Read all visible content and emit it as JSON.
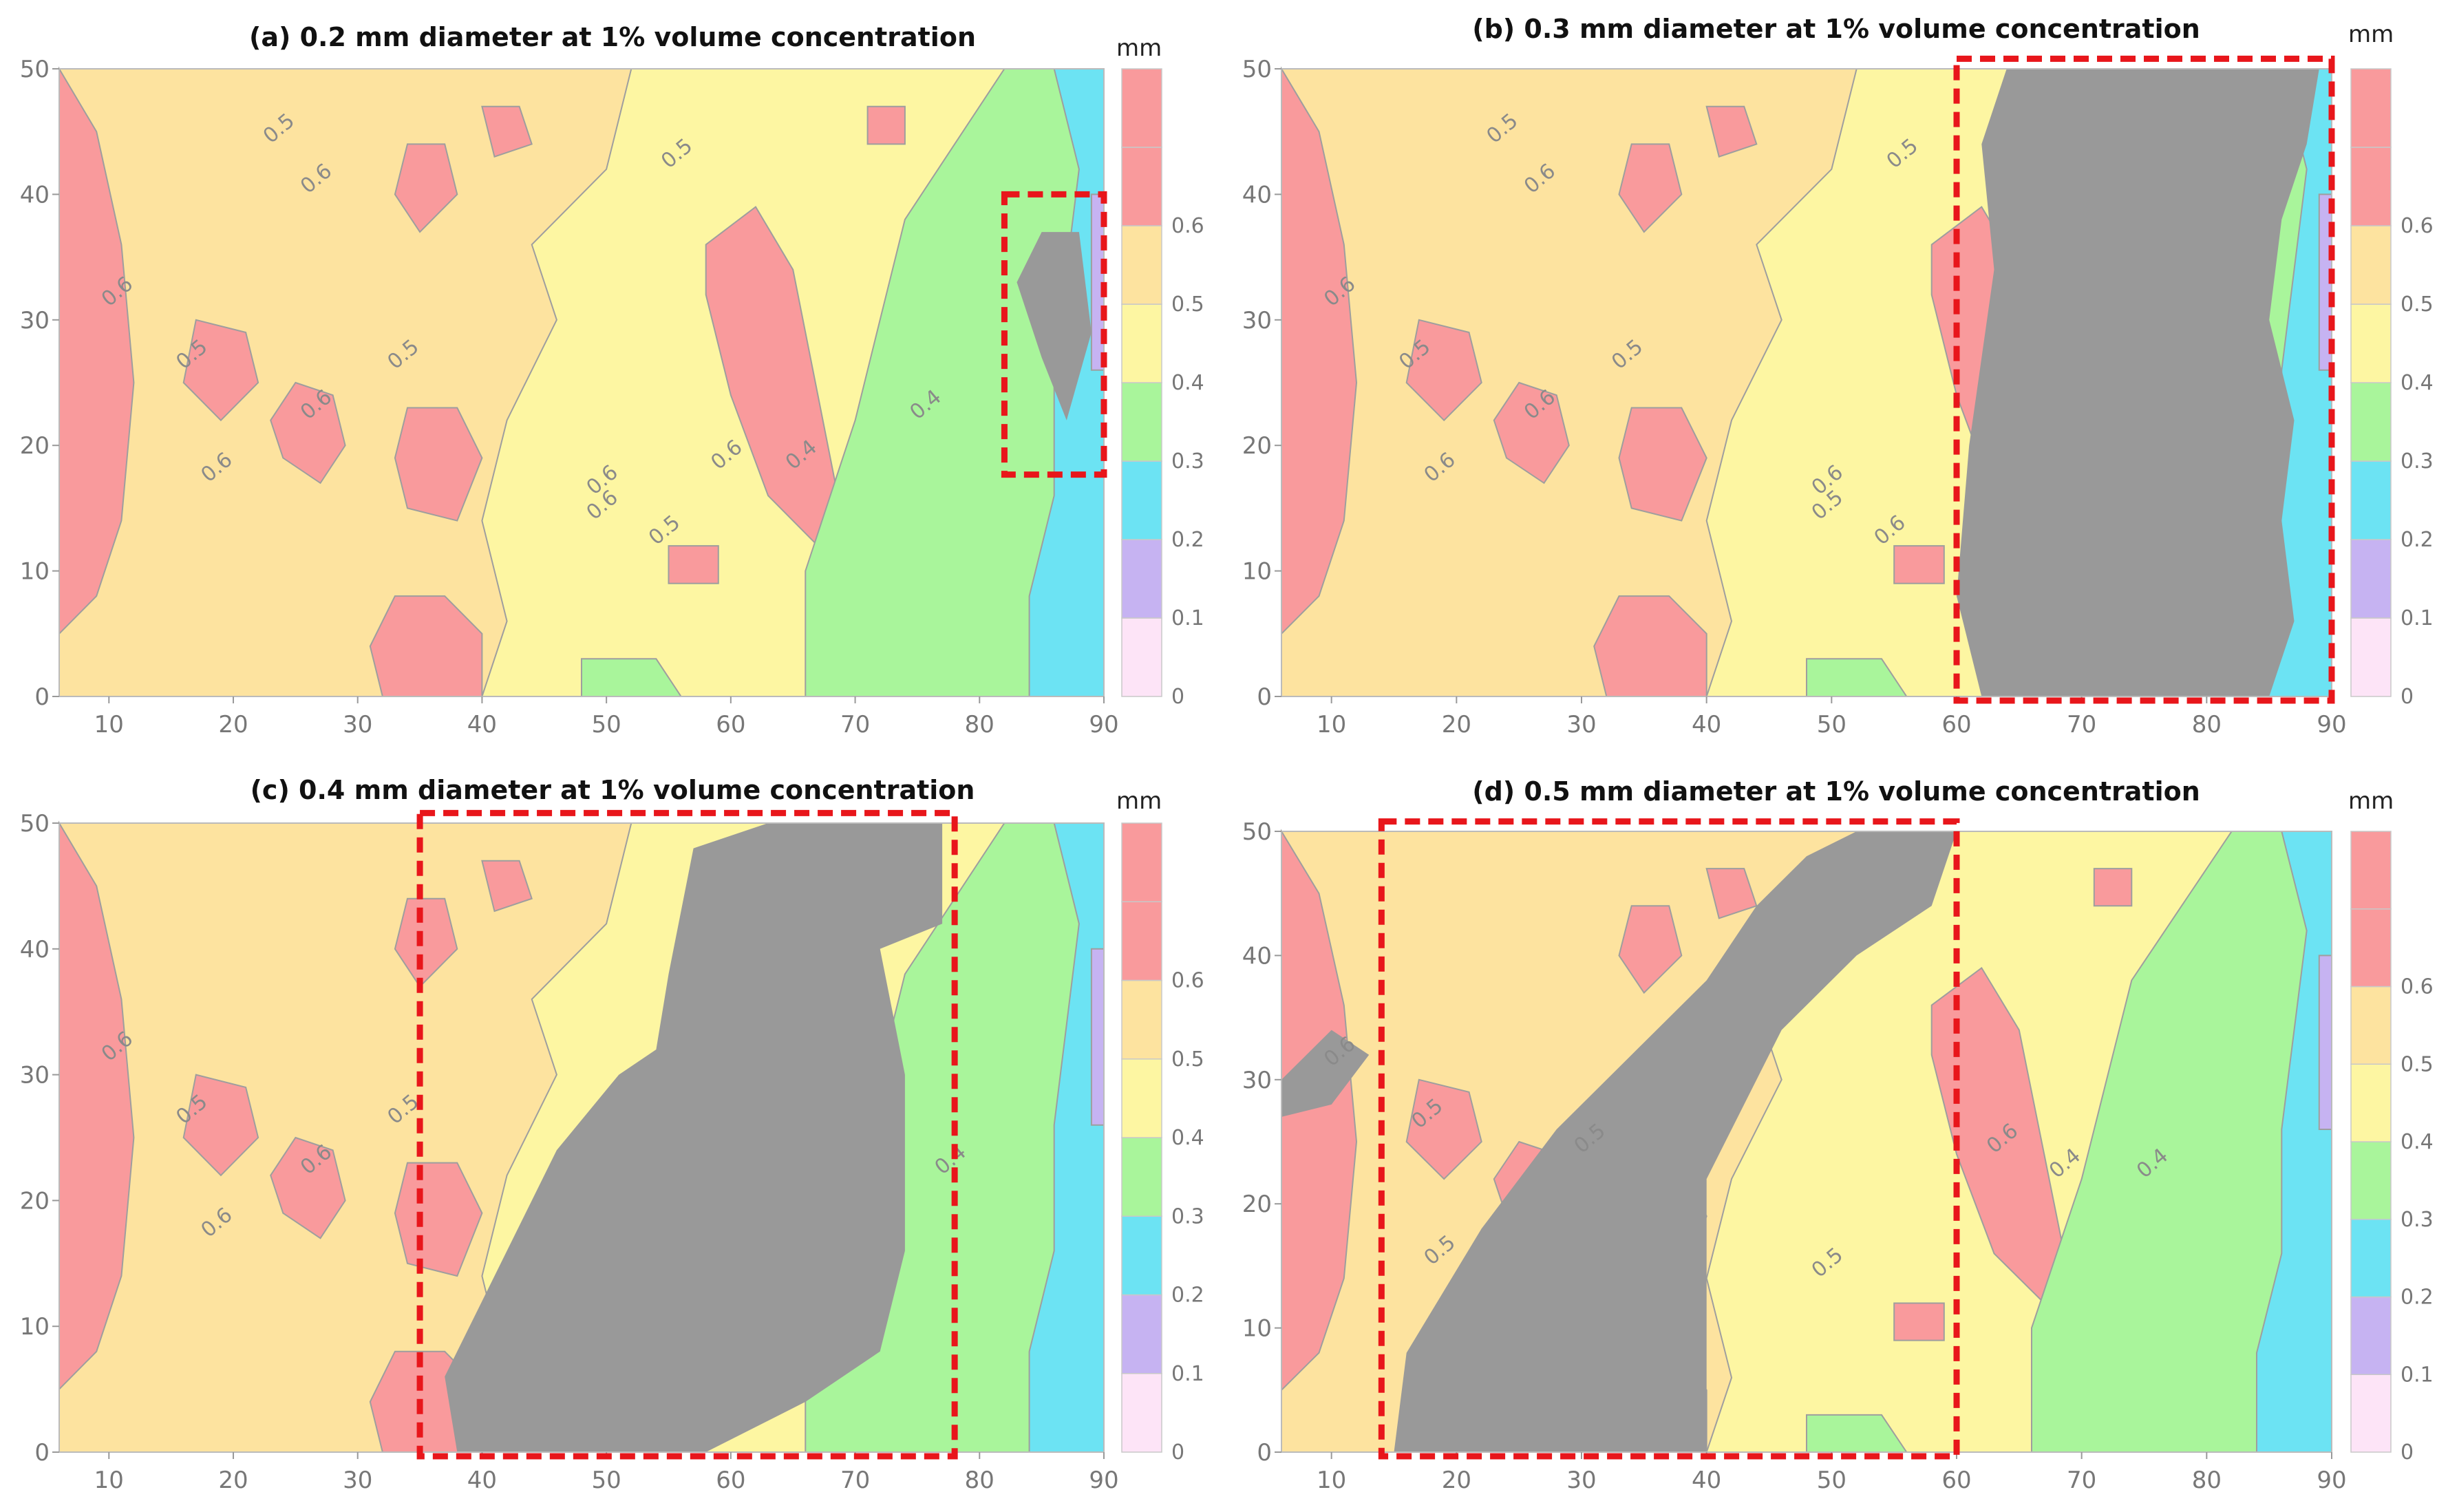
{
  "chart_data": [
    {
      "type": "heatmap",
      "title": "(a) 0.2 mm diameter at 1% volume concentration",
      "xlabel": "",
      "ylabel": "",
      "xlim": [
        6,
        90
      ],
      "ylim": [
        0,
        50
      ],
      "xticks": [
        10,
        20,
        30,
        40,
        50,
        60,
        70,
        80,
        90
      ],
      "yticks": [
        0,
        10,
        20,
        30,
        40,
        50
      ],
      "colorbar": {
        "unit": "mm",
        "levels": [
          0,
          0.1,
          0.2,
          0.3,
          0.4,
          0.5,
          0.6
        ]
      },
      "contour_labels": [
        "0.6",
        "0.5",
        "0.5",
        "0.6",
        "0.5",
        "0.6",
        "0.6",
        "0.5",
        "0.6",
        "0.6",
        "0.5",
        "0.6",
        "0.4",
        "0.4"
      ],
      "highlight_box": {
        "x": [
          82,
          90
        ],
        "y": [
          18,
          40
        ]
      },
      "gray_region": "right"
    },
    {
      "type": "heatmap",
      "title": "(b) 0.3 mm diameter at 1% volume concentration",
      "xlabel": "",
      "ylabel": "",
      "xlim": [
        6,
        90
      ],
      "ylim": [
        0,
        50
      ],
      "xticks": [
        10,
        20,
        30,
        40,
        50,
        60,
        70,
        80,
        90
      ],
      "yticks": [
        0,
        10,
        20,
        30,
        40,
        50
      ],
      "colorbar": {
        "unit": "mm",
        "levels": [
          0,
          0.1,
          0.2,
          0.3,
          0.4,
          0.5,
          0.6
        ]
      },
      "contour_labels": [
        "0.6",
        "0.5",
        "0.5",
        "0.6",
        "0.5",
        "0.6",
        "0.6",
        "0.5",
        "0.6",
        "0.5",
        "0.6"
      ],
      "highlight_box": {
        "x": [
          60,
          90
        ],
        "y": [
          0,
          51
        ]
      },
      "gray_region": "right-large"
    },
    {
      "type": "heatmap",
      "title": "(c) 0.4 mm diameter at 1% volume concentration",
      "xlabel": "",
      "ylabel": "",
      "xlim": [
        6,
        90
      ],
      "ylim": [
        0,
        50
      ],
      "xticks": [
        10,
        20,
        30,
        40,
        50,
        60,
        70,
        80,
        90
      ],
      "yticks": [
        0,
        10,
        20,
        30,
        40,
        50
      ],
      "colorbar": {
        "unit": "mm",
        "levels": [
          0,
          0.1,
          0.2,
          0.3,
          0.4,
          0.5,
          0.6
        ]
      },
      "contour_labels": [
        "0.6",
        "0.5",
        "0.6",
        "0.6",
        "0.5",
        "0.4"
      ],
      "highlight_box": {
        "x": [
          35,
          78
        ],
        "y": [
          0,
          51
        ]
      },
      "gray_region": "diagonal"
    },
    {
      "type": "heatmap",
      "title": "(d) 0.5 mm diameter at 1% volume concentration",
      "xlabel": "",
      "ylabel": "",
      "xlim": [
        6,
        90
      ],
      "ylim": [
        0,
        50
      ],
      "xticks": [
        10,
        20,
        30,
        40,
        50,
        60,
        70,
        80,
        90
      ],
      "yticks": [
        0,
        10,
        20,
        30,
        40,
        50
      ],
      "colorbar": {
        "unit": "mm",
        "levels": [
          0,
          0.1,
          0.2,
          0.3,
          0.4,
          0.5,
          0.6
        ]
      },
      "contour_labels": [
        "0.6",
        "0.5",
        "0.5",
        "0.5",
        "0.5",
        "0.6",
        "0.4",
        "0.4"
      ],
      "highlight_box": {
        "x": [
          14,
          60
        ],
        "y": [
          0,
          51
        ]
      },
      "gray_region": "diagonal-left"
    }
  ],
  "colors": {
    "band_0_0.1": "#fde4f7",
    "band_0.1_0.2": "#c6b3f2",
    "band_0.2_0.3": "#6ce3f3",
    "band_0.3_0.4": "#a9f59b",
    "band_0.4_0.5": "#fdf6a2",
    "band_0.5_0.6": "#fde39f",
    "band_0.6_up": "#f99a9c",
    "gray": "#999999",
    "box": "#e8161b",
    "contour": "#9e9e9e"
  }
}
